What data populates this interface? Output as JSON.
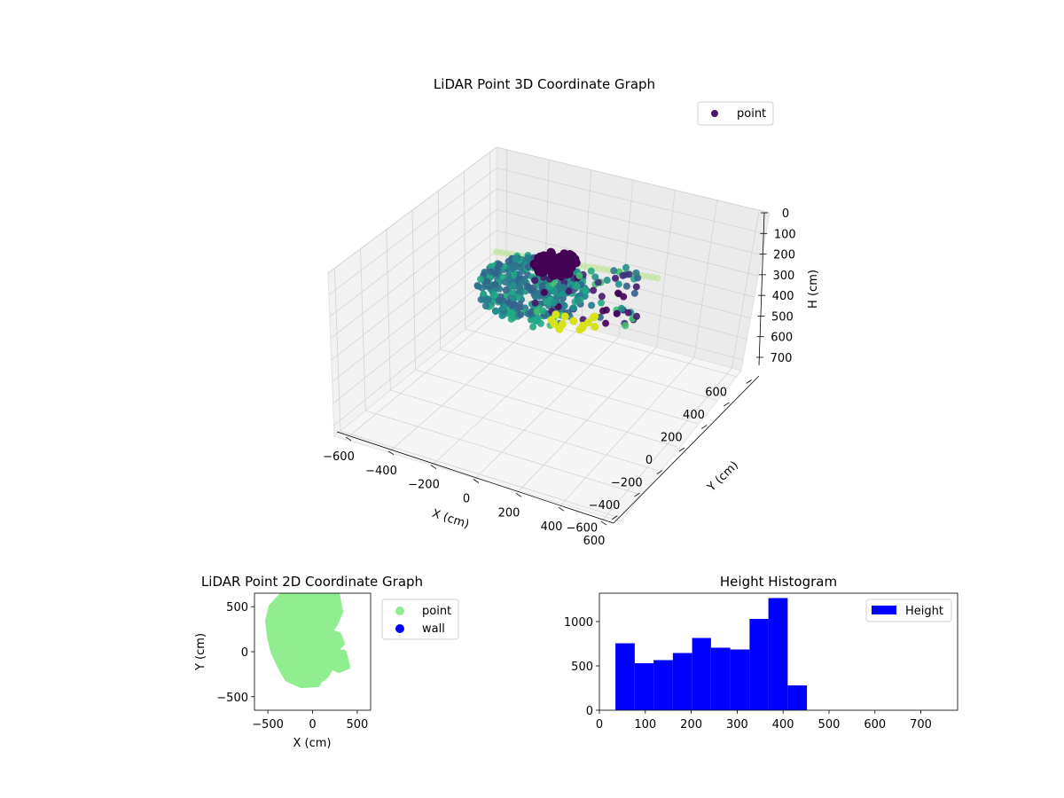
{
  "chart_data": [
    {
      "type": "scatter",
      "projection": "3d",
      "title": "LiDAR Point 3D Coordinate Graph",
      "xlabel": "X (cm)",
      "ylabel": "Y (cm)",
      "zlabel": "H (cm)",
      "xlim": [
        -650,
        650
      ],
      "ylim": [
        -650,
        650
      ],
      "zlim": [
        0,
        750
      ],
      "z_inverted": true,
      "x_ticks": [
        "−600",
        "−400",
        "−200",
        "0",
        "200",
        "400",
        "600"
      ],
      "y_ticks": [
        "−600",
        "−400",
        "−200",
        "0",
        "200",
        "400",
        "600"
      ],
      "z_ticks": [
        "0",
        "100",
        "200",
        "300",
        "400",
        "500",
        "600",
        "700"
      ],
      "colormap": "viridis",
      "legend": [
        {
          "label": "point",
          "color": "#46176a"
        }
      ],
      "legend_position": "upper-right",
      "grid": true
    },
    {
      "type": "scatter",
      "title": "LiDAR Point 2D Coordinate Graph",
      "xlabel": "X (cm)",
      "ylabel": "Y (cm)",
      "xlim": [
        -650,
        650
      ],
      "ylim": [
        -650,
        650
      ],
      "x_ticks": [
        "−500",
        "0",
        "500"
      ],
      "y_ticks": [
        "−500",
        "0",
        "500"
      ],
      "series": [
        {
          "name": "point",
          "color": "#90ee90"
        },
        {
          "name": "wall",
          "color": "#0000ff"
        }
      ],
      "legend_position": "outside-right"
    },
    {
      "type": "bar",
      "title": "Height Histogram",
      "xlabel": "",
      "ylabel": "",
      "xlim": [
        0,
        780
      ],
      "ylim": [
        0,
        1320
      ],
      "x_ticks": [
        "0",
        "100",
        "200",
        "300",
        "400",
        "500",
        "600",
        "700"
      ],
      "y_ticks": [
        "0",
        "500",
        "1000"
      ],
      "bins": [
        {
          "x0": 35,
          "x1": 77,
          "value": 755
        },
        {
          "x0": 77,
          "x1": 118,
          "value": 530
        },
        {
          "x0": 118,
          "x1": 160,
          "value": 565
        },
        {
          "x0": 160,
          "x1": 202,
          "value": 645
        },
        {
          "x0": 202,
          "x1": 243,
          "value": 815
        },
        {
          "x0": 243,
          "x1": 285,
          "value": 705
        },
        {
          "x0": 285,
          "x1": 327,
          "value": 685
        },
        {
          "x0": 327,
          "x1": 368,
          "value": 1030
        },
        {
          "x0": 368,
          "x1": 410,
          "value": 1265
        },
        {
          "x0": 410,
          "x1": 452,
          "value": 280
        }
      ],
      "series": [
        {
          "name": "Height",
          "color": "#0000ff"
        }
      ],
      "legend_position": "upper-right"
    }
  ]
}
